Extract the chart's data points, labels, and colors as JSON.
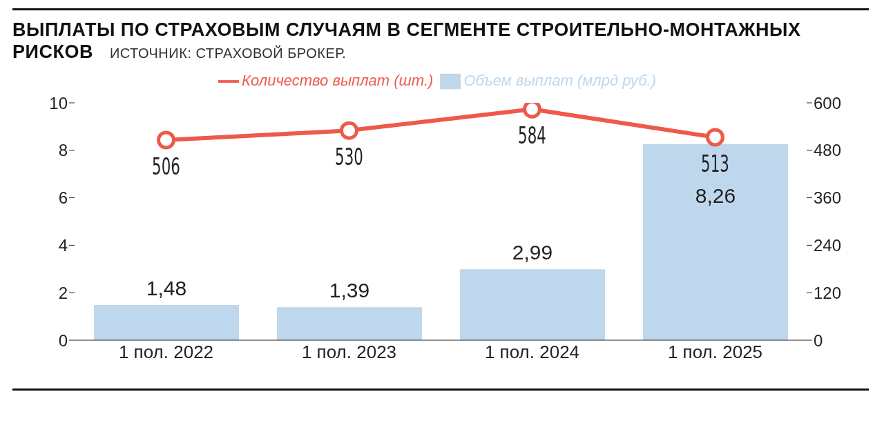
{
  "chart_data": {
    "type": "bar",
    "title": "ВЫПЛАТЫ ПО СТРАХОВЫМ СЛУЧАЯМ В СЕГМЕНТЕ СТРОИТЕЛЬНО-МОНТАЖНЫХ РИСКОВ",
    "annotations": [
      "ИСТОЧНИК: СТРАХОВОЙ БРОКЕР."
    ],
    "categories": [
      "1 пол. 2022",
      "1 пол. 2023",
      "1 пол. 2024",
      "1 пол. 2025"
    ],
    "series": [
      {
        "name": "Объем выплат (млрд руб.)",
        "color": "#bfd7ec",
        "values": [
          1.48,
          1.39,
          2.99,
          8.26
        ],
        "value_labels": [
          "1,48",
          "1,39",
          "2,99",
          "8,26"
        ]
      },
      {
        "name": "Количество выплат (шт.)",
        "type": "line",
        "axis": "y2",
        "color": "#ee5a4a",
        "values": [
          506,
          530,
          584,
          513
        ],
        "value_labels": [
          "506",
          "530",
          "584",
          "513"
        ],
        "marker": "circle"
      }
    ],
    "ylim": [
      0,
      10
    ],
    "yticks": [
      0,
      2,
      4,
      6,
      8,
      10
    ],
    "y2lim": [
      0,
      600
    ],
    "y2ticks": [
      0,
      120,
      240,
      360,
      480,
      600
    ],
    "grid": false,
    "legend": "top"
  }
}
